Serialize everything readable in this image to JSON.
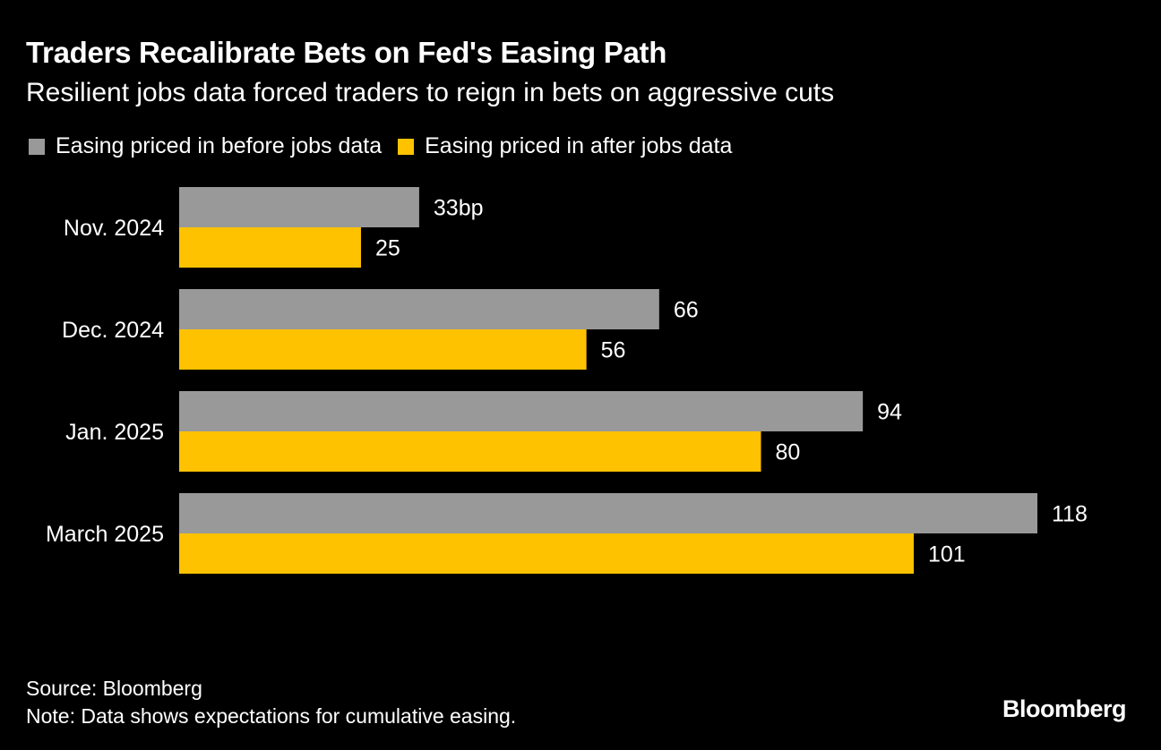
{
  "header": {
    "title": "Traders Recalibrate Bets on Fed's Easing Path",
    "subtitle": "Resilient jobs data forced traders to reign in bets on aggressive cuts"
  },
  "legend": {
    "before_label": "Easing priced in before jobs data",
    "after_label": "Easing priced in after jobs data"
  },
  "footer": {
    "source": "Source: Bloomberg",
    "note": "Note: Data shows expectations for cumulative easing.",
    "brand": "Bloomberg"
  },
  "colors": {
    "background": "#000000",
    "before": "#999999",
    "after": "#ffc200",
    "text": "#ffffff"
  },
  "chart_data": {
    "type": "bar",
    "orientation": "horizontal",
    "title": "Traders Recalibrate Bets on Fed's Easing Path",
    "subtitle": "Resilient jobs data forced traders to reign in bets on aggressive cuts",
    "categories": [
      "Nov. 2024",
      "Dec. 2024",
      "Jan. 2025",
      "March 2025"
    ],
    "series": [
      {
        "name": "Easing priced in before jobs data",
        "values": [
          33,
          66,
          94,
          118
        ],
        "color": "#999999"
      },
      {
        "name": "Easing priced in after jobs data",
        "values": [
          25,
          56,
          80,
          101
        ],
        "color": "#ffc200"
      }
    ],
    "value_labels": [
      [
        "33bp",
        "66",
        "94",
        "118"
      ],
      [
        "25",
        "56",
        "80",
        "101"
      ]
    ],
    "unit": "bp",
    "xlim": [
      0,
      118
    ],
    "grid": false,
    "legend_position": "top-left",
    "xlabel": "",
    "ylabel": ""
  }
}
